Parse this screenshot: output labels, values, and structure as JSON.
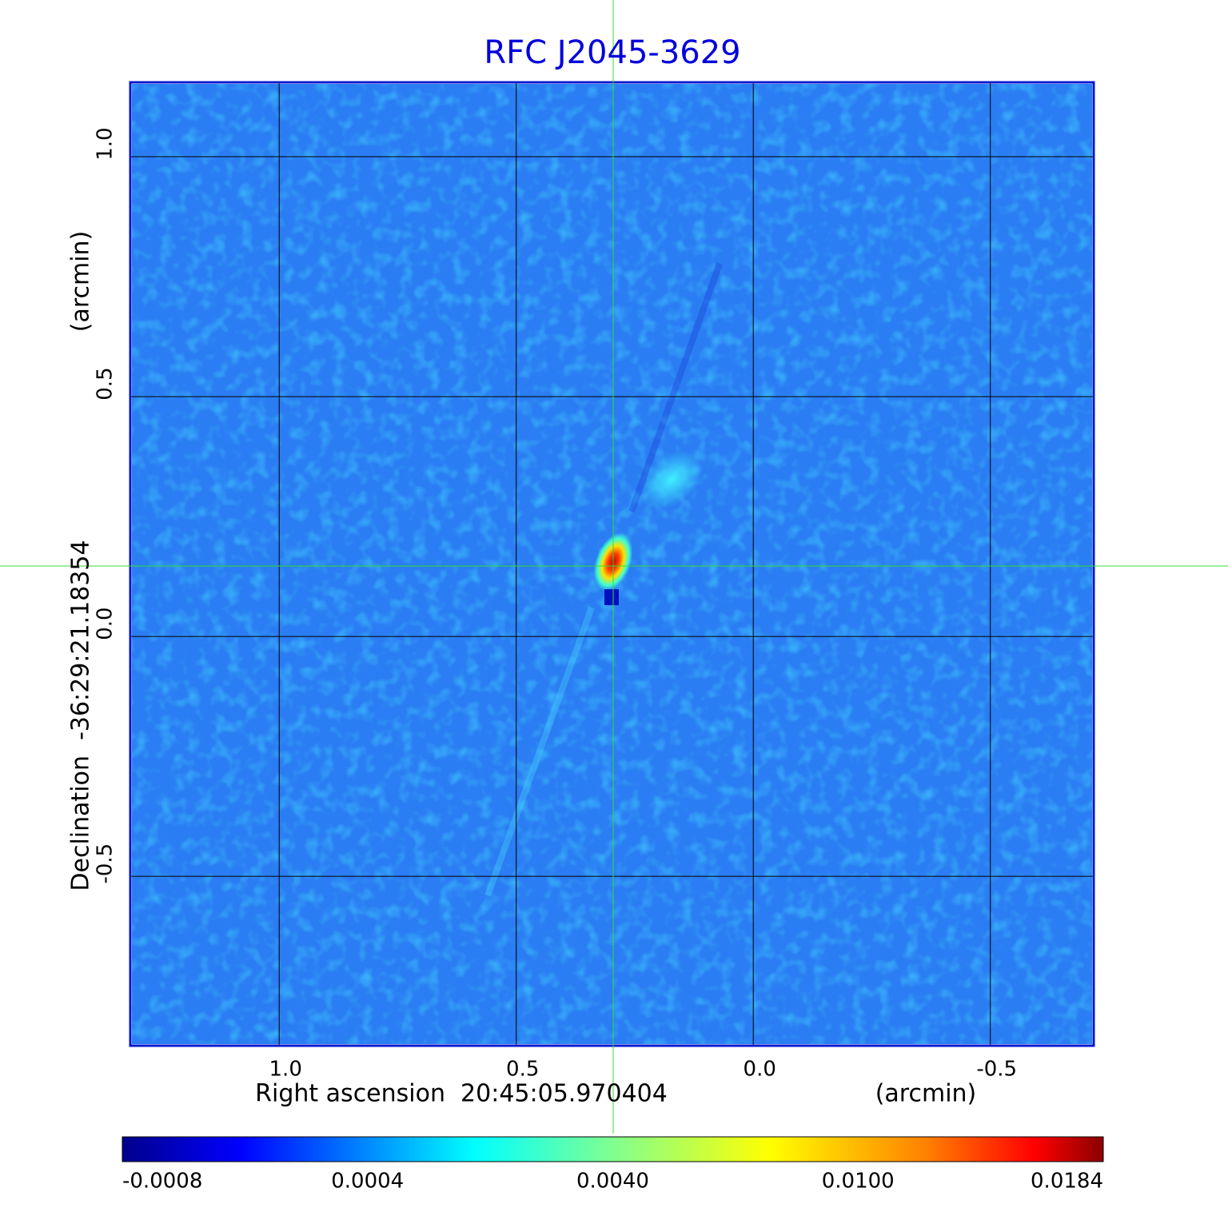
{
  "chart_data": {
    "type": "image",
    "title": "RFC J2045-3629",
    "x_label": "Right ascension  20:45:05.970404",
    "x_unit": "(arcmin)",
    "y_label": "Declination  -36:29:21.18354",
    "y_unit": "(arcmin)",
    "xlim": [
      1.314,
      -0.718
    ],
    "ylim": [
      -0.853,
      1.155
    ],
    "xticks": [
      {
        "value": 1,
        "label": "1.0"
      },
      0.5,
      {
        "value": 0,
        "label": "0.0"
      },
      -0.5
    ],
    "yticks": [
      {
        "value": 1,
        "label": "1.0"
      },
      0.5,
      {
        "value": 0,
        "label": "0.0"
      },
      -0.5
    ],
    "grid": true,
    "colormap": "jet",
    "colorbar": {
      "scale": "sqrt",
      "lim": [
        -0.0008,
        0.0184
      ],
      "ticks": [
        -0.0008,
        0.0004,
        {
          "value": 0.004,
          "label": "0.0040"
        },
        {
          "value": 0.01,
          "label": "0.0100"
        },
        0.0184
      ]
    }
  }
}
